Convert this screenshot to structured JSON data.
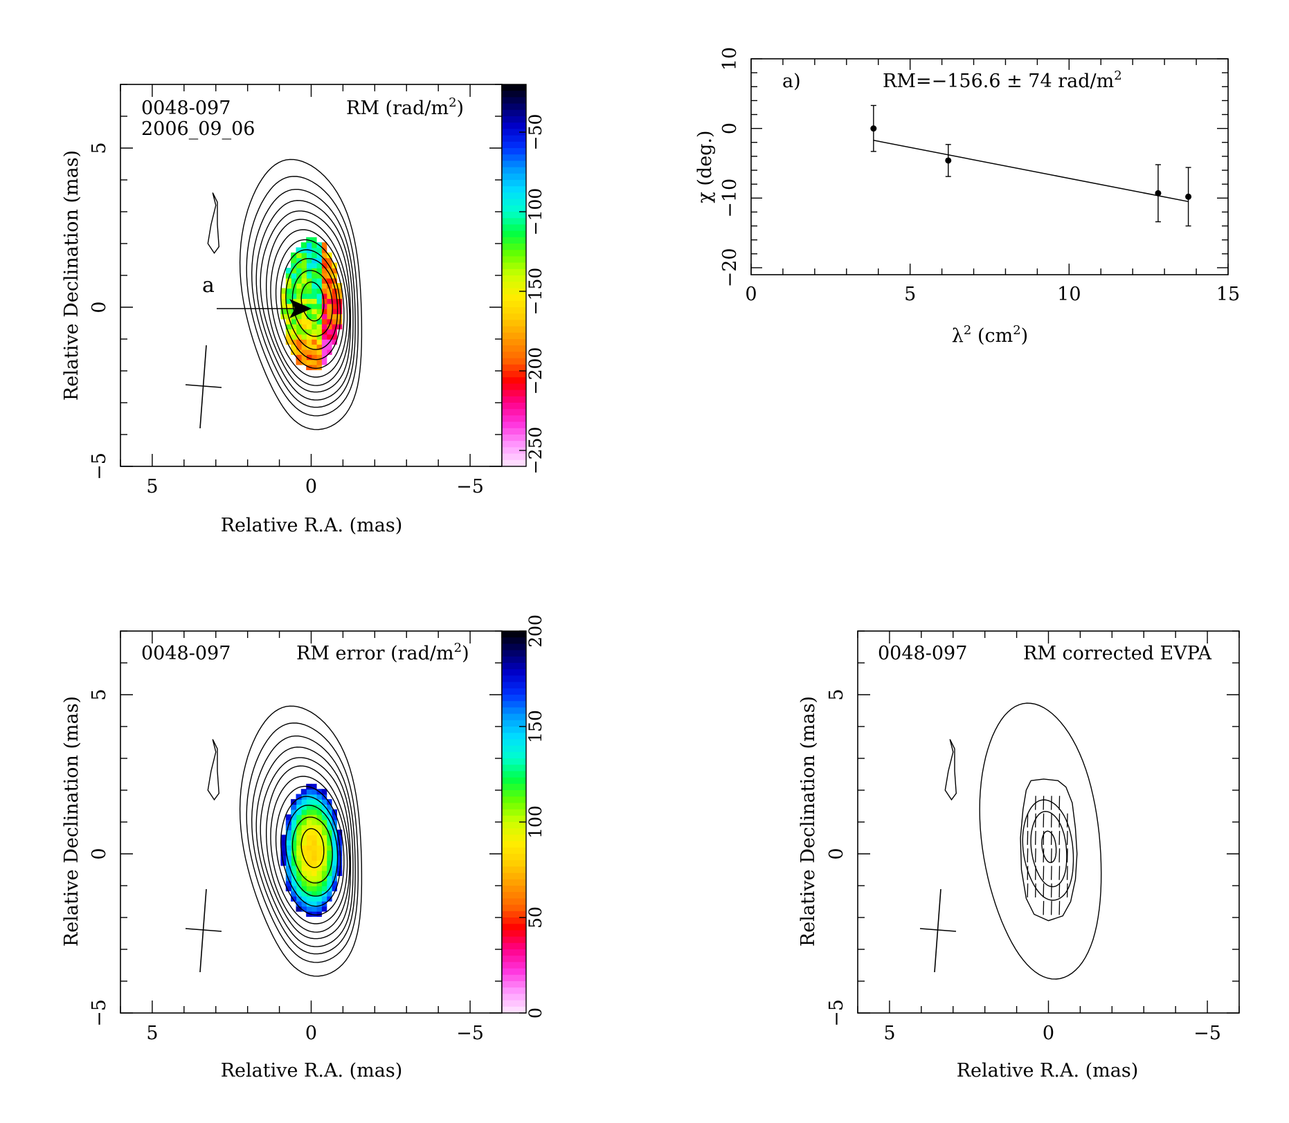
{
  "colormap": [
    "#ffe8ff",
    "#ff99ff",
    "#ff33dd",
    "#ff0088",
    "#ff0000",
    "#ff6600",
    "#ff9900",
    "#ffcc00",
    "#ffee00",
    "#ccff00",
    "#66ff00",
    "#00ff44",
    "#00ffcc",
    "#00ddff",
    "#0099ff",
    "#0033ff",
    "#0000cc",
    "#000066",
    "#000000"
  ],
  "chart_data": [
    {
      "type": "heatmap",
      "source": "0048-097",
      "date": "2006_09_06",
      "quantity_label": "RM (rad/m",
      "quantity_sup": "2",
      "quantity_close": ")",
      "xlabel": "Relative R.A. (mas)",
      "ylabel": "Relative Declination (mas)",
      "xlim": [
        6,
        -6
      ],
      "ylim": [
        -5,
        7
      ],
      "xticks": [
        5,
        0,
        -5
      ],
      "yticks": [
        -5,
        0,
        5
      ],
      "xtick_labels": [
        "5",
        "0",
        "−5"
      ],
      "ytick_labels": [
        "−5",
        "0",
        "5"
      ],
      "colorbar": {
        "range": [
          -260,
          -20
        ],
        "ticks": [
          -50,
          -100,
          -150,
          -200,
          -250
        ],
        "tick_labels": [
          "−50",
          "−100",
          "−150",
          "−200",
          "−250"
        ]
      },
      "marker": {
        "label": "a",
        "x": 0,
        "y": 0
      }
    },
    {
      "type": "scatter",
      "panel_label": "a)",
      "fit_label": "RM=−156.6 ± 74 rad/m",
      "fit_sup": "2",
      "xlabel_main": "λ",
      "xlabel_sup": "2",
      "xlabel_tail": " (cm",
      "xlabel_sup2": "2",
      "xlabel_close": ")",
      "ylabel": "χ (deg.)",
      "xlim": [
        0,
        15
      ],
      "ylim": [
        -21,
        10
      ],
      "xticks": [
        0,
        5,
        10,
        15
      ],
      "yticks": [
        10,
        0,
        -10,
        -20
      ],
      "xtick_labels": [
        "0",
        "5",
        "10",
        "15"
      ],
      "ytick_labels": [
        "10",
        "0",
        "−10",
        "−20"
      ],
      "points": [
        {
          "x": 3.85,
          "y": 0.0,
          "err": 3.3
        },
        {
          "x": 6.2,
          "y": -4.6,
          "err": 2.3
        },
        {
          "x": 12.8,
          "y": -9.3,
          "err": 4.1
        },
        {
          "x": 13.75,
          "y": -9.8,
          "err": 4.2
        }
      ],
      "fit_line": {
        "x": [
          3.85,
          13.75
        ],
        "y": [
          -1.7,
          -10.5
        ]
      }
    },
    {
      "type": "heatmap",
      "source": "0048-097",
      "quantity_label": "RM error (rad/m",
      "quantity_sup": "2",
      "quantity_close": ")",
      "xlabel": "Relative R.A. (mas)",
      "ylabel": "Relative Declination (mas)",
      "xlim": [
        6,
        -6
      ],
      "ylim": [
        -5,
        7
      ],
      "xticks": [
        5,
        0,
        -5
      ],
      "yticks": [
        -5,
        0,
        5
      ],
      "xtick_labels": [
        "5",
        "0",
        "−5"
      ],
      "ytick_labels": [
        "−5",
        "0",
        "5"
      ],
      "colorbar": {
        "range": [
          0,
          200
        ],
        "ticks": [
          0,
          50,
          100,
          150,
          200
        ],
        "tick_labels": [
          "0",
          "50",
          "100",
          "150",
          "200"
        ]
      }
    },
    {
      "type": "heatmap",
      "source": "0048-097",
      "quantity_label": "RM corrected EVPA",
      "xlabel": "Relative R.A. (mas)",
      "ylabel": "Relative Declination (mas)",
      "xlim": [
        6,
        -6
      ],
      "ylim": [
        -5,
        7
      ],
      "xticks": [
        5,
        0,
        -5
      ],
      "yticks": [
        -5,
        0,
        5
      ],
      "xtick_labels": [
        "5",
        "0",
        "−5"
      ],
      "ytick_labels": [
        "−5",
        "0",
        "5"
      ]
    }
  ]
}
